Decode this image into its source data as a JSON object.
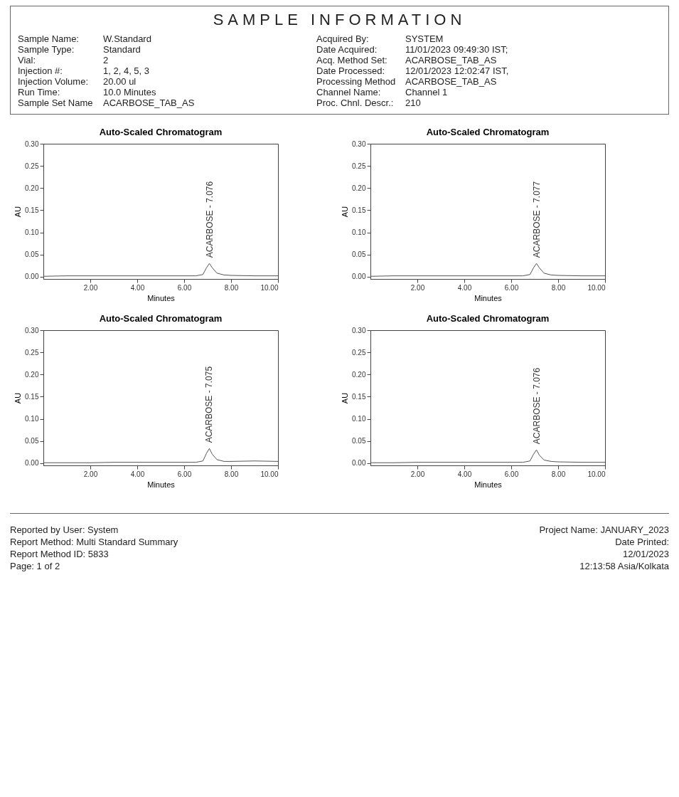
{
  "chart_data": [
    {
      "type": "other",
      "title": "SAMPLE INFORMATION",
      "annotations": [
        "Sample Name:",
        "W.Standard",
        "Acquired By:",
        "SYSTEM",
        "Sample Type:",
        "Standard",
        "Date Acquired:",
        "11/01/2023 09:49:30 IST;",
        "Vial:",
        "2",
        "Acq. Method Set:",
        "ACARBOSE_TAB_AS",
        "Injection #:",
        "1, 2, 4, 5, 3",
        "Date Processed:",
        "12/01/2023 12:02:47 IST,",
        "Injection Volume:",
        "20.00 ul",
        "Processing Method",
        "ACARBOSE_TAB_AS",
        "Run Time:",
        "10.0 Minutes",
        "Channel Name:",
        "Channel 1",
        "Sample Set Name",
        "ACARBOSE_TAB_AS",
        "Proc. Chnl. Descr.:",
        "210"
      ]
    },
    {
      "type": "line",
      "title": "Auto-Scaled Chromatogram",
      "xlabel": "Minutes",
      "ylabel": "AU",
      "xlim": [
        0,
        10
      ],
      "ylim": [
        -0.005,
        0.3
      ],
      "xticks": [
        {
          "value": 2,
          "label": "2.00"
        },
        {
          "value": 4,
          "label": "4.00"
        },
        {
          "value": 6,
          "label": "6.00"
        },
        {
          "value": 8,
          "label": "8.00"
        },
        {
          "value": 10,
          "label": "10.00"
        }
      ],
      "yticks": [
        {
          "value": 0,
          "label": "0.00"
        },
        {
          "value": 0.05,
          "label": "0.05"
        },
        {
          "value": 0.1,
          "label": "0.10"
        },
        {
          "value": 0.15,
          "label": "0.15"
        },
        {
          "value": 0.2,
          "label": "0.20"
        },
        {
          "value": 0.25,
          "label": "0.25"
        },
        {
          "value": 0.3,
          "label": "0.30"
        }
      ],
      "series": [
        {
          "color": "#555555",
          "x": [
            0,
            1,
            2,
            3,
            4,
            5,
            6,
            6.5,
            6.8,
            6.95,
            7.076,
            7.2,
            7.4,
            7.7,
            8,
            9,
            10
          ],
          "values": [
            0.001,
            0.002,
            0.002,
            0.002,
            0.002,
            0.002,
            0.002,
            0.002,
            0.005,
            0.02,
            0.03,
            0.02,
            0.008,
            0.004,
            0.003,
            0.002,
            0.002
          ]
        }
      ],
      "annotations": [
        {
          "text": "ACARBOSE - 7.076",
          "x": 7.076,
          "y": 0.03
        }
      ]
    },
    {
      "type": "line",
      "title": "Auto-Scaled Chromatogram",
      "xlabel": "Minutes",
      "ylabel": "AU",
      "xlim": [
        0,
        10
      ],
      "ylim": [
        -0.005,
        0.3
      ],
      "xticks": [
        {
          "value": 2,
          "label": "2.00"
        },
        {
          "value": 4,
          "label": "4.00"
        },
        {
          "value": 6,
          "label": "6.00"
        },
        {
          "value": 8,
          "label": "8.00"
        },
        {
          "value": 10,
          "label": "10.00"
        }
      ],
      "yticks": [
        {
          "value": 0,
          "label": "0.00"
        },
        {
          "value": 0.05,
          "label": "0.05"
        },
        {
          "value": 0.1,
          "label": "0.10"
        },
        {
          "value": 0.15,
          "label": "0.15"
        },
        {
          "value": 0.2,
          "label": "0.20"
        },
        {
          "value": 0.25,
          "label": "0.25"
        },
        {
          "value": 0.3,
          "label": "0.30"
        }
      ],
      "series": [
        {
          "color": "#555555",
          "x": [
            0,
            1,
            2,
            3,
            4,
            5,
            6,
            6.5,
            6.8,
            6.95,
            7.077,
            7.2,
            7.4,
            7.7,
            8,
            9,
            10
          ],
          "values": [
            0.001,
            0.002,
            0.002,
            0.002,
            0.002,
            0.002,
            0.002,
            0.002,
            0.005,
            0.02,
            0.03,
            0.02,
            0.008,
            0.004,
            0.003,
            0.002,
            0.002
          ]
        }
      ],
      "annotations": [
        {
          "text": "ACARBOSE - 7.077",
          "x": 7.077,
          "y": 0.03
        }
      ]
    },
    {
      "type": "line",
      "title": "Auto-Scaled Chromatogram",
      "xlabel": "Minutes",
      "ylabel": "AU",
      "xlim": [
        0,
        10
      ],
      "ylim": [
        -0.005,
        0.3
      ],
      "xticks": [
        {
          "value": 2,
          "label": "2.00"
        },
        {
          "value": 4,
          "label": "4.00"
        },
        {
          "value": 6,
          "label": "6.00"
        },
        {
          "value": 8,
          "label": "8.00"
        },
        {
          "value": 10,
          "label": "10.00"
        }
      ],
      "yticks": [
        {
          "value": 0,
          "label": "0.00"
        },
        {
          "value": 0.05,
          "label": "0.05"
        },
        {
          "value": 0.1,
          "label": "0.10"
        },
        {
          "value": 0.15,
          "label": "0.15"
        },
        {
          "value": 0.2,
          "label": "0.20"
        },
        {
          "value": 0.25,
          "label": "0.25"
        },
        {
          "value": 0.3,
          "label": "0.30"
        }
      ],
      "series": [
        {
          "color": "#555555",
          "x": [
            0,
            1,
            2,
            3,
            4,
            5,
            6,
            6.5,
            6.8,
            6.95,
            7.075,
            7.2,
            7.4,
            7.7,
            8,
            9,
            10
          ],
          "values": [
            0.001,
            0.001,
            0.001,
            0.002,
            0.002,
            0.002,
            0.002,
            0.002,
            0.005,
            0.022,
            0.033,
            0.02,
            0.008,
            0.004,
            0.004,
            0.005,
            0.004
          ]
        }
      ],
      "annotations": [
        {
          "text": "ACARBOSE - 7.075",
          "x": 7.075,
          "y": 0.033
        }
      ]
    },
    {
      "type": "line",
      "title": "Auto-Scaled Chromatogram",
      "xlabel": "Minutes",
      "ylabel": "AU",
      "xlim": [
        0,
        10
      ],
      "ylim": [
        -0.005,
        0.3
      ],
      "xticks": [
        {
          "value": 2,
          "label": "2.00"
        },
        {
          "value": 4,
          "label": "4.00"
        },
        {
          "value": 6,
          "label": "6.00"
        },
        {
          "value": 8,
          "label": "8.00"
        },
        {
          "value": 10,
          "label": "10.00"
        }
      ],
      "yticks": [
        {
          "value": 0,
          "label": "0.00"
        },
        {
          "value": 0.05,
          "label": "0.05"
        },
        {
          "value": 0.1,
          "label": "0.10"
        },
        {
          "value": 0.15,
          "label": "0.15"
        },
        {
          "value": 0.2,
          "label": "0.20"
        },
        {
          "value": 0.25,
          "label": "0.25"
        },
        {
          "value": 0.3,
          "label": "0.30"
        }
      ],
      "series": [
        {
          "color": "#555555",
          "x": [
            0,
            1,
            2,
            3,
            4,
            5,
            6,
            6.5,
            6.8,
            6.95,
            7.076,
            7.2,
            7.4,
            7.7,
            8,
            9,
            10
          ],
          "values": [
            0.001,
            0.001,
            0.002,
            0.002,
            0.002,
            0.002,
            0.002,
            0.002,
            0.005,
            0.02,
            0.03,
            0.018,
            0.007,
            0.004,
            0.003,
            0.002,
            0.002
          ]
        }
      ],
      "annotations": [
        {
          "text": "ACARBOSE - 7.076",
          "x": 7.076,
          "y": 0.03
        }
      ]
    },
    {
      "type": "other",
      "annotations": [
        "Reported by User: System",
        "Project Name:   JANUARY_2023",
        "Report Method: Multi Standard Summary",
        "Date Printed:",
        "Report Method ID: 5833",
        "12/01/2023",
        "Page: 1 of 2",
        "12:13:58 Asia/Kolkata"
      ]
    }
  ]
}
